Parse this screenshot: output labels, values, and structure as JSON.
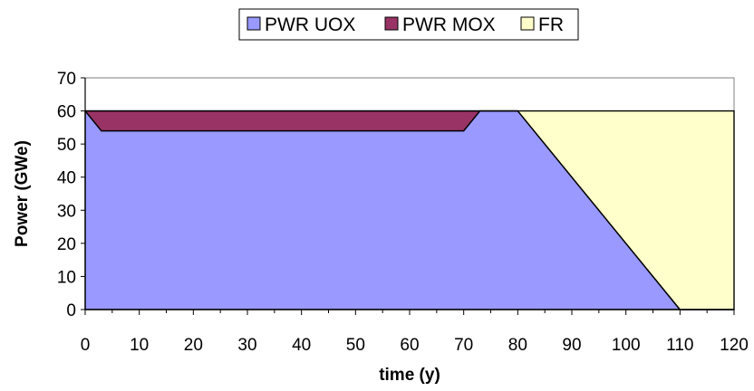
{
  "chart_data": {
    "type": "area",
    "stacked": true,
    "xlabel": "time (y)",
    "ylabel": "Power (GWe)",
    "xlim": [
      0,
      120
    ],
    "ylim": [
      0,
      70
    ],
    "x_ticks": [
      "0",
      "10",
      "20",
      "30",
      "40",
      "50",
      "60",
      "70",
      "80",
      "90",
      "100",
      "110",
      "120"
    ],
    "y_ticks": [
      "0",
      "10",
      "20",
      "30",
      "40",
      "50",
      "60",
      "70"
    ],
    "grid": false,
    "legend_position": "top",
    "series": [
      {
        "name": "PWR UOX",
        "color": "#9999ff",
        "points": [
          [
            0,
            60
          ],
          [
            3,
            54
          ],
          [
            70,
            54
          ],
          [
            73,
            60
          ],
          [
            80,
            60
          ],
          [
            110,
            0
          ],
          [
            120,
            0
          ]
        ]
      },
      {
        "name": "PWR MOX",
        "color": "#993366",
        "points": [
          [
            0,
            0
          ],
          [
            3,
            6
          ],
          [
            70,
            6
          ],
          [
            73,
            0
          ],
          [
            80,
            0
          ],
          [
            110,
            0
          ],
          [
            120,
            0
          ]
        ]
      },
      {
        "name": "FR",
        "color": "#ffffcc",
        "points": [
          [
            0,
            0
          ],
          [
            3,
            0
          ],
          [
            70,
            0
          ],
          [
            73,
            0
          ],
          [
            80,
            0
          ],
          [
            110,
            60
          ],
          [
            120,
            60
          ]
        ]
      }
    ]
  }
}
